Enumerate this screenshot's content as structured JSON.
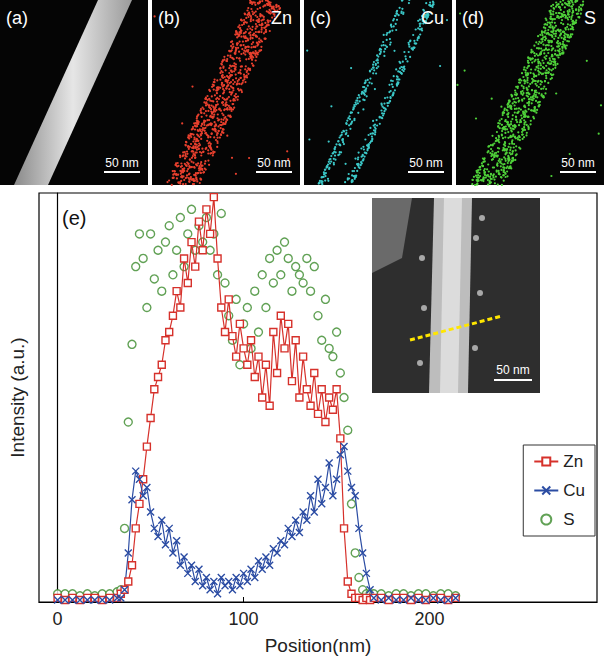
{
  "panels": [
    {
      "label": "(a)",
      "scale_bar": "50 nm"
    },
    {
      "label": "(b)",
      "element": "Zn",
      "color": "#e8402e",
      "scale_bar": "50 nm"
    },
    {
      "label": "(c)",
      "element": "Cu",
      "color": "#3cc8c8",
      "scale_bar": "50 nm"
    },
    {
      "label": "(d)",
      "element": "S",
      "color": "#4fd13a",
      "scale_bar": "50 nm"
    }
  ],
  "chart_data": {
    "type": "line",
    "panel_label": "(e)",
    "inset_scale_bar": "50 nm",
    "x_label": "Position(nm)",
    "y_label": "Intensity (a.u.)",
    "xlim": [
      -10,
      290
    ],
    "xticks": [
      0,
      100,
      200
    ],
    "ylim": [
      0,
      100
    ],
    "tick_labels": "x",
    "grid": false,
    "legend": "right",
    "x": [
      0,
      4,
      8,
      12,
      16,
      20,
      24,
      28,
      32,
      34,
      36,
      38,
      40,
      42,
      44,
      46,
      48,
      50,
      52,
      54,
      56,
      58,
      60,
      62,
      64,
      66,
      68,
      70,
      72,
      74,
      76,
      78,
      80,
      82,
      84,
      86,
      88,
      90,
      92,
      94,
      96,
      98,
      100,
      102,
      104,
      106,
      108,
      110,
      112,
      114,
      116,
      118,
      120,
      122,
      124,
      126,
      128,
      130,
      132,
      134,
      136,
      138,
      140,
      142,
      144,
      146,
      148,
      150,
      152,
      154,
      156,
      158,
      160,
      162,
      164,
      166,
      168,
      170,
      174,
      178,
      182,
      186,
      190,
      194,
      198,
      202,
      206,
      210,
      214
    ],
    "series": [
      {
        "name": "Zn",
        "type": "line",
        "color": "#d6312b",
        "marker": "square",
        "line_style": "solid",
        "values": [
          1,
          0.5,
          1,
          0.5,
          1,
          1,
          0.5,
          1,
          1,
          2,
          3,
          5,
          9,
          18,
          24,
          30,
          38,
          45,
          52,
          55,
          58,
          64,
          66,
          70,
          76,
          72,
          84,
          78,
          88,
          82,
          93,
          86,
          96,
          90,
          99,
          84,
          72,
          66,
          74,
          65,
          60,
          68,
          62,
          58,
          64,
          55,
          60,
          50,
          58,
          48,
          66,
          56,
          70,
          62,
          68,
          54,
          64,
          50,
          60,
          52,
          48,
          56,
          46,
          52,
          44,
          50,
          47,
          52,
          40,
          18,
          5,
          2,
          1,
          1,
          0.5,
          1,
          0.5,
          1,
          1,
          0.5,
          1,
          1,
          0.5,
          1,
          0.5,
          1,
          1,
          0.5,
          1
        ]
      },
      {
        "name": "Cu",
        "type": "line",
        "color": "#2b4ca3",
        "marker": "x",
        "line_style": "solid",
        "values": [
          0.5,
          0.5,
          0.5,
          0.5,
          0.5,
          0.5,
          0.5,
          0.5,
          1,
          1,
          3,
          12,
          25,
          32,
          30,
          26,
          28,
          22,
          18,
          16,
          20,
          14,
          18,
          12,
          15,
          9,
          11,
          7,
          9,
          5,
          8,
          4,
          6,
          3,
          5,
          2,
          6,
          4,
          5,
          3,
          6,
          4,
          7,
          5,
          8,
          6,
          10,
          8,
          11,
          9,
          13,
          12,
          15,
          14,
          18,
          16,
          20,
          17,
          22,
          20,
          26,
          22,
          30,
          24,
          28,
          34,
          26,
          30,
          36,
          38,
          32,
          28,
          26,
          18,
          12,
          7,
          3,
          1,
          0.5,
          1,
          0.5,
          0.5,
          1,
          0.5,
          0.5,
          1,
          0.5,
          0.5,
          1
        ]
      },
      {
        "name": "S",
        "type": "scatter",
        "color": "#3a8a2a",
        "marker": "circle",
        "values": [
          2,
          2,
          2,
          1.5,
          2,
          1.5,
          2,
          2,
          2.5,
          3,
          18,
          44,
          63,
          82,
          90,
          84,
          72,
          90,
          79,
          86,
          76,
          88,
          92,
          80,
          86,
          94,
          82,
          90,
          96,
          86,
          92,
          88,
          94,
          86,
          90,
          80,
          95,
          78,
          70,
          64,
          74,
          58,
          68,
          72,
          62,
          76,
          66,
          80,
          72,
          84,
          78,
          86,
          80,
          88,
          84,
          76,
          82,
          80,
          78,
          84,
          76,
          82,
          70,
          64,
          74,
          62,
          60,
          66,
          56,
          50,
          42,
          24,
          12,
          6,
          3,
          2,
          2,
          2,
          2,
          1.5,
          2,
          2,
          1.5,
          2,
          2,
          1.5,
          2,
          2,
          1.5
        ]
      }
    ]
  }
}
